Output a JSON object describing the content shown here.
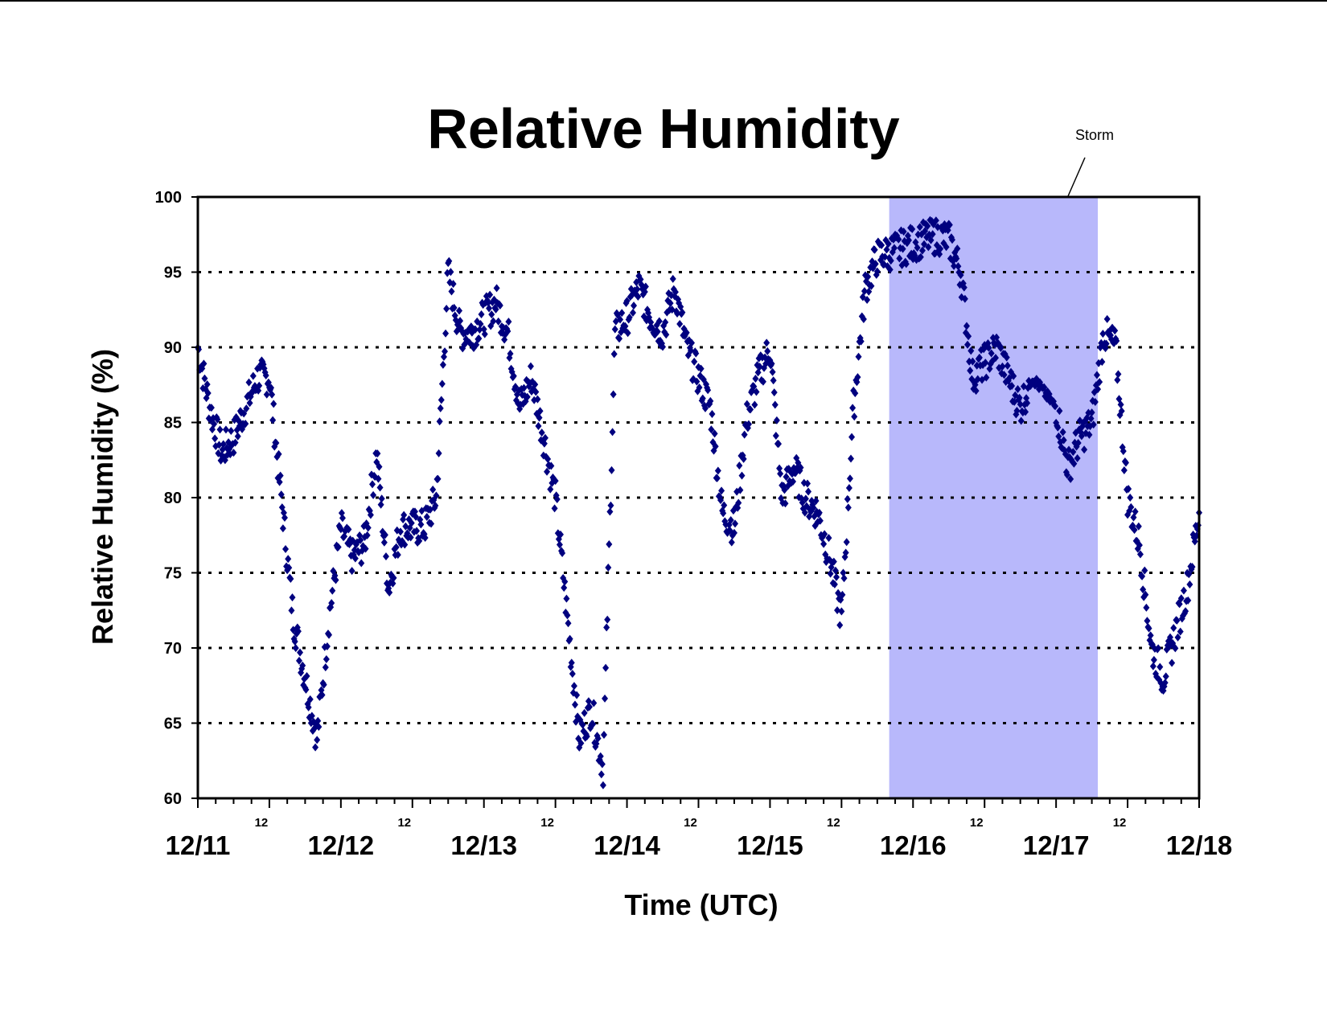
{
  "chart_data": {
    "type": "scatter",
    "title": "Relative Humidity",
    "xlabel": "Time (UTC)",
    "ylabel": "Relative Humidity (%)",
    "ylim": [
      60,
      100
    ],
    "yticks": [
      60,
      65,
      70,
      75,
      80,
      85,
      90,
      95,
      100
    ],
    "xlim": [
      "12/11 00",
      "12/18 00"
    ],
    "xtick_labels": [
      "12/11",
      "12/12",
      "12/13",
      "12/14",
      "12/15",
      "12/16",
      "12/17",
      "12/18"
    ],
    "xminor_label": "12",
    "grid": "horizontal dotted lines at y ticks",
    "marker": "diamond",
    "colors": {
      "series": "#00007f",
      "storm_shade": "#b8b8fb"
    },
    "annotation": {
      "text": "Storm",
      "x_start": "12/15 20",
      "x_end": "12/17 07"
    },
    "series": [
      {
        "x": [
          "12/11 00",
          "12/11 02",
          "12/11 04",
          "12/11 06",
          "12/11 08",
          "12/11 10",
          "12/11 12",
          "12/11 14",
          "12/11 16",
          "12/11 18",
          "12/11 20",
          "12/11 22",
          "12/12 00",
          "12/12 02",
          "12/12 04",
          "12/12 06",
          "12/12 08",
          "12/12 10",
          "12/12 12",
          "12/12 14",
          "12/12 16",
          "12/12 18",
          "12/12 20",
          "12/12 22",
          "12/13 00",
          "12/13 02",
          "12/13 04",
          "12/13 06",
          "12/13 08",
          "12/13 10",
          "12/13 12",
          "12/13 14",
          "12/13 16",
          "12/13 18",
          "12/13 20",
          "12/13 22",
          "12/14 00",
          "12/14 02",
          "12/14 04",
          "12/14 06",
          "12/14 08",
          "12/14 10",
          "12/14 12",
          "12/14 14",
          "12/14 16",
          "12/14 18",
          "12/14 20",
          "12/14 22",
          "12/15 00",
          "12/15 02",
          "12/15 04",
          "12/15 06",
          "12/15 08",
          "12/15 10",
          "12/15 12",
          "12/15 14",
          "12/15 16",
          "12/15 18",
          "12/15 20",
          "12/15 22",
          "12/16 00",
          "12/16 02",
          "12/16 04",
          "12/16 06",
          "12/16 08",
          "12/16 10",
          "12/16 12",
          "12/16 14",
          "12/16 16",
          "12/16 18",
          "12/16 20",
          "12/16 22",
          "12/17 00",
          "12/17 02",
          "12/17 04",
          "12/17 06",
          "12/17 08",
          "12/17 10",
          "12/17 12",
          "12/17 14",
          "12/17 16",
          "12/17 18",
          "12/17 20",
          "12/17 22",
          "12/18 00"
        ],
        "y": [
          90,
          86,
          83,
          84,
          86,
          88,
          88,
          80,
          72,
          68,
          64,
          72,
          78,
          76,
          77,
          83,
          74,
          78,
          78,
          78,
          80,
          95,
          91,
          91,
          92,
          93,
          91,
          86,
          88,
          84,
          80,
          72,
          64,
          66,
          62,
          91,
          92,
          94,
          92,
          91,
          94,
          90,
          88,
          86,
          79,
          78,
          85,
          88,
          90,
          80,
          82,
          80,
          79,
          76,
          72,
          86,
          94,
          96,
          96.3,
          96.6,
          96.9,
          97.2,
          97.4,
          97.2,
          95,
          88,
          89,
          90,
          88,
          86,
          88,
          87,
          86,
          82,
          84,
          85,
          91,
          90,
          80,
          77,
          70,
          68,
          71,
          74,
          79
        ]
      }
    ]
  }
}
